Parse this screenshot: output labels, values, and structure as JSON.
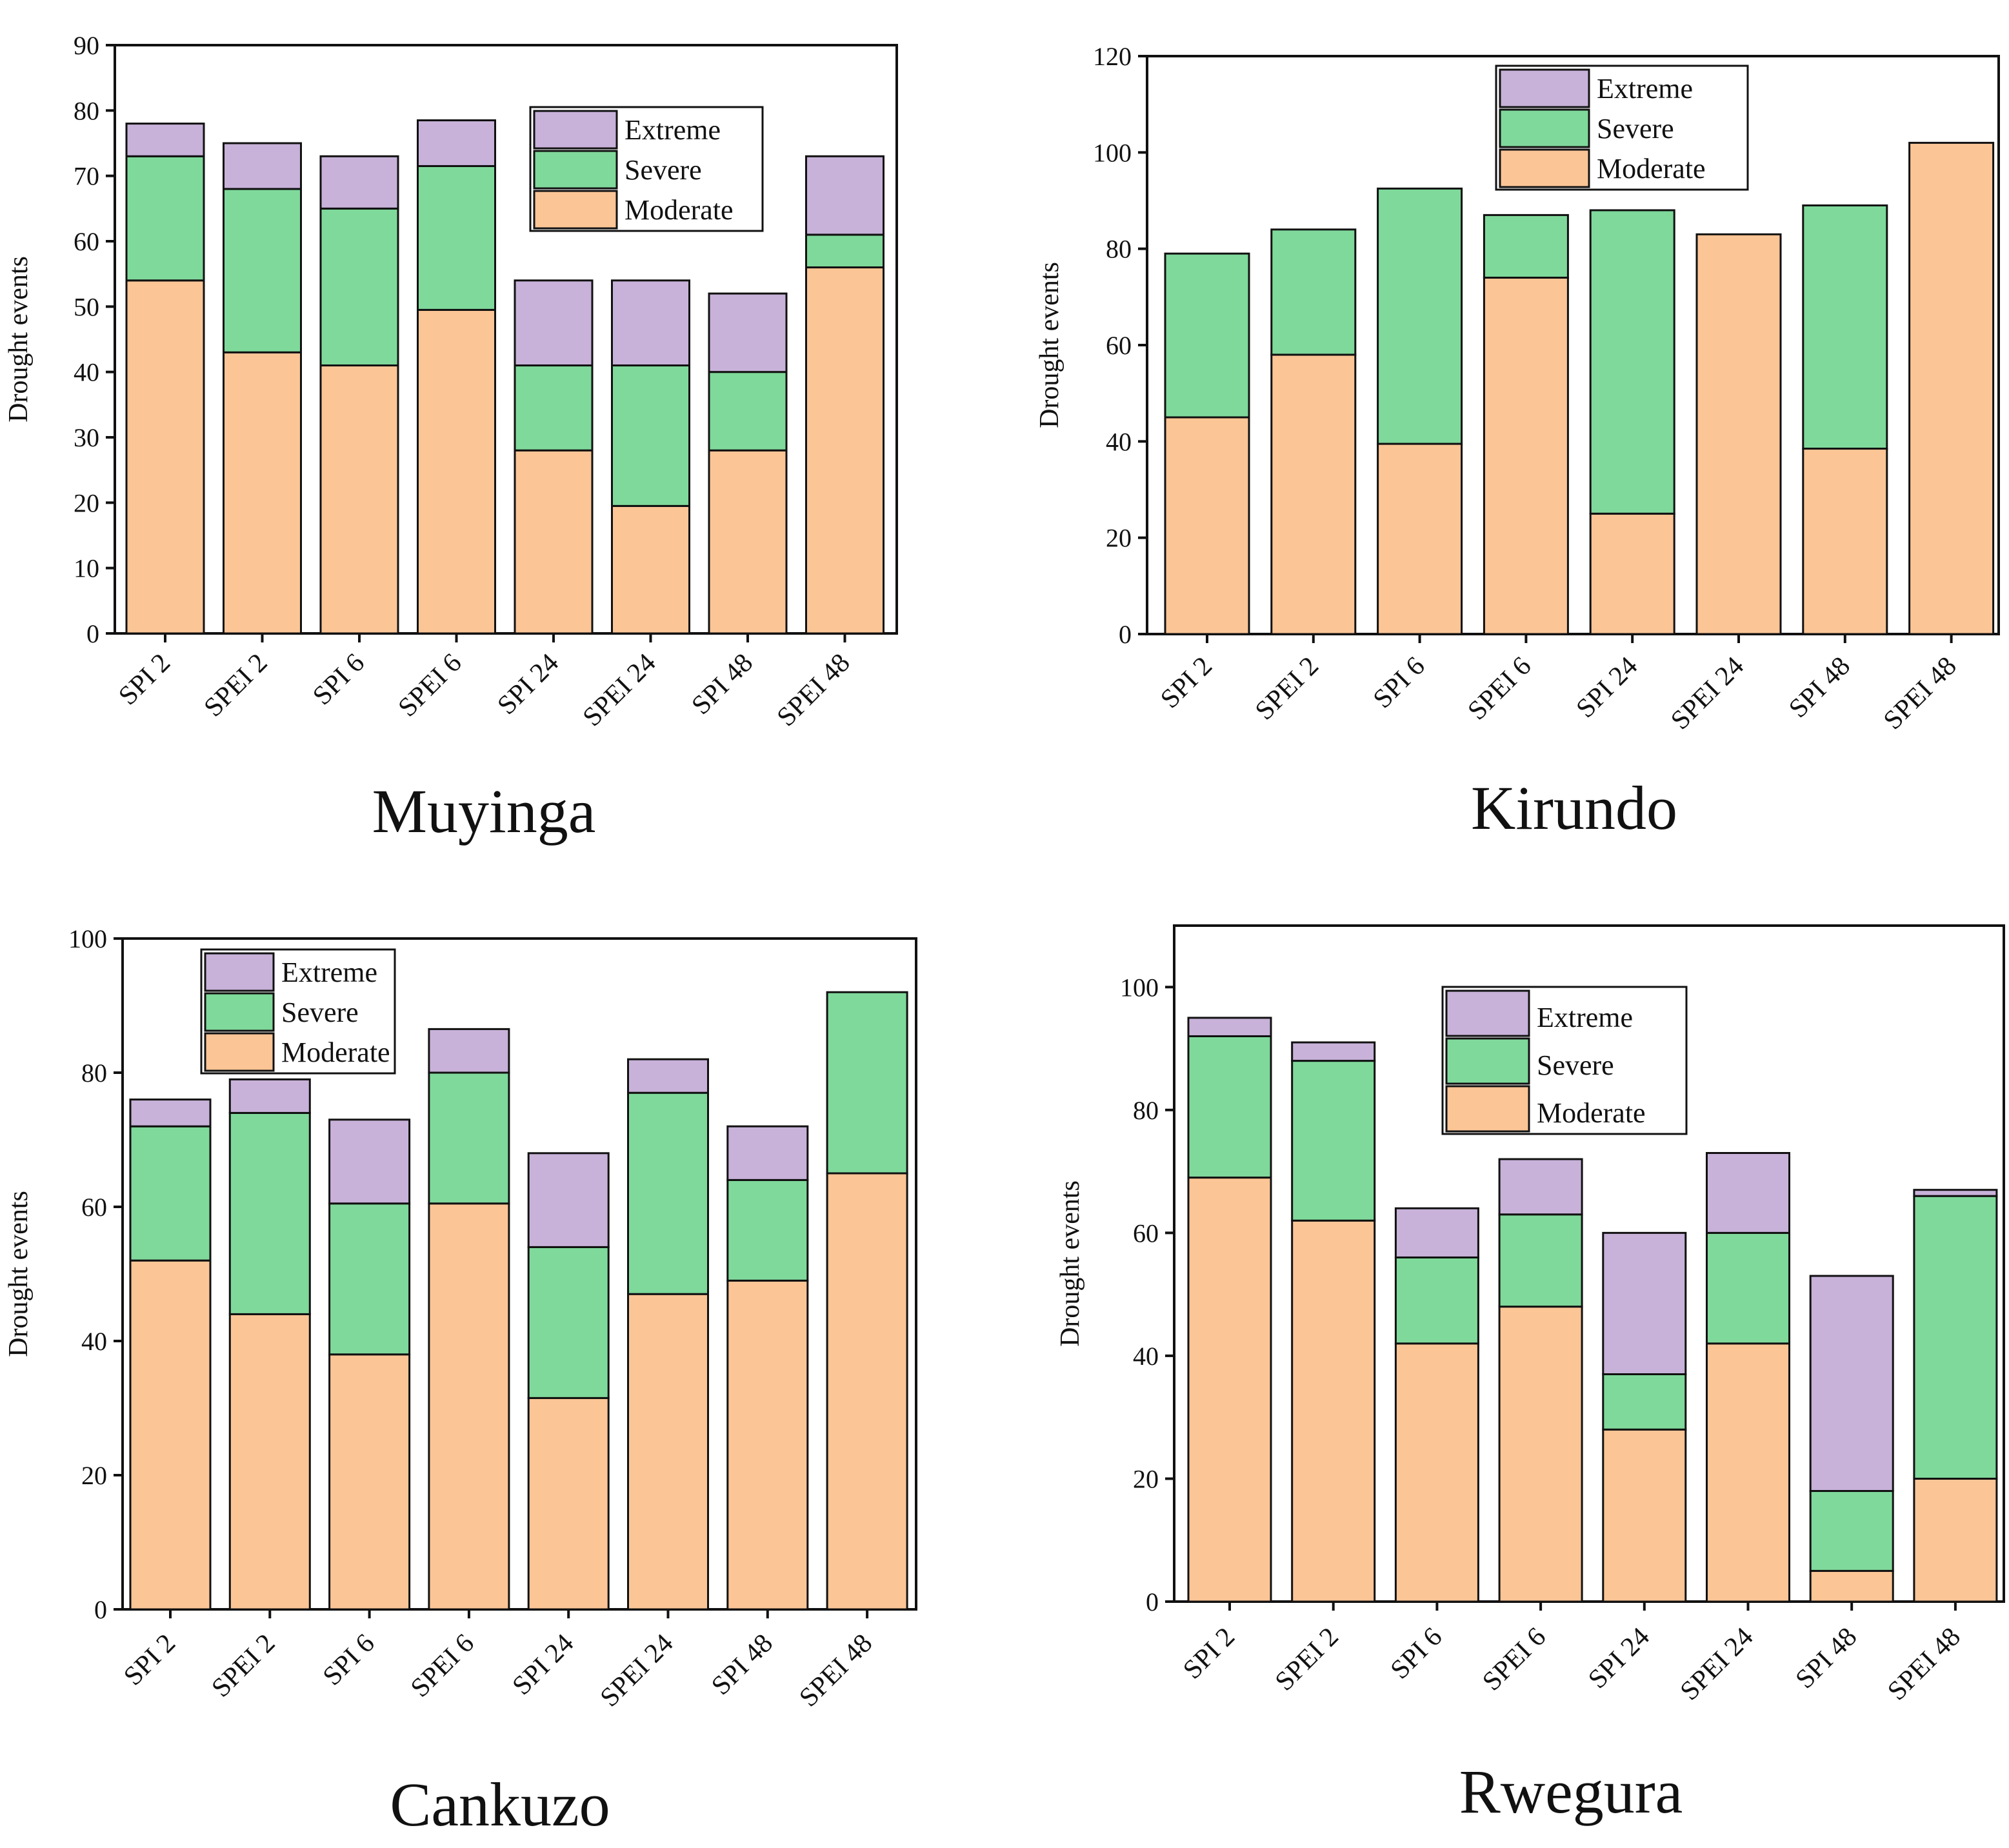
{
  "colors": {
    "moderate": "#fbc596",
    "severe": "#7fd99b",
    "extreme": "#c8b2d9",
    "outline": "#111111"
  },
  "chart_data": [
    {
      "type": "bar",
      "stacked": true,
      "title": "Muyinga",
      "ylabel": "Drought events",
      "ylim": [
        0,
        90
      ],
      "yticks": [
        0,
        10,
        20,
        30,
        40,
        50,
        60,
        70,
        80,
        90
      ],
      "categories": [
        "SPI 2",
        "SPEI 2",
        "SPI 6",
        "SPEI 6",
        "SPI 24",
        "SPEI 24",
        "SPI 48",
        "SPEI 48"
      ],
      "legend": [
        "Extreme",
        "Severe",
        "Moderate"
      ],
      "legend_position": "top-right",
      "series": [
        {
          "name": "Moderate",
          "values": [
            54,
            43,
            41,
            49.5,
            28,
            19.5,
            28,
            56
          ]
        },
        {
          "name": "Severe",
          "values": [
            19,
            25,
            24,
            22,
            13,
            21.5,
            12,
            5
          ]
        },
        {
          "name": "Extreme",
          "values": [
            5,
            7,
            8,
            7,
            13,
            13,
            12,
            12
          ]
        }
      ]
    },
    {
      "type": "bar",
      "stacked": true,
      "title": "Kirundo",
      "ylabel": "Drought events",
      "ylim": [
        0,
        120
      ],
      "yticks": [
        0,
        20,
        40,
        60,
        80,
        100,
        120
      ],
      "categories": [
        "SPI 2",
        "SPEI 2",
        "SPI 6",
        "SPEI 6",
        "SPI 24",
        "SPEI 24",
        "SPI 48",
        "SPEI 48"
      ],
      "legend": [
        "Extreme",
        "Severe",
        "Moderate"
      ],
      "legend_position": "top-center",
      "series": [
        {
          "name": "Moderate",
          "values": [
            45,
            58,
            39.5,
            74,
            25,
            83,
            38.5,
            102
          ]
        },
        {
          "name": "Severe",
          "values": [
            34,
            26,
            53,
            13,
            63,
            0,
            50.5,
            0
          ]
        },
        {
          "name": "Extreme",
          "values": [
            0,
            0,
            0,
            0,
            0,
            0,
            0,
            0
          ]
        }
      ]
    },
    {
      "type": "bar",
      "stacked": true,
      "title": "Cankuzo",
      "ylabel": "Drought events",
      "ylim": [
        0,
        100
      ],
      "yticks": [
        0,
        20,
        40,
        60,
        80,
        100
      ],
      "categories": [
        "SPI 2",
        "SPEI 2",
        "SPI 6",
        "SPEI 6",
        "SPI 24",
        "SPEI 24",
        "SPI 48",
        "SPEI 48"
      ],
      "legend": [
        "Extreme",
        "Severe",
        "Moderate"
      ],
      "legend_position": "top-left",
      "series": [
        {
          "name": "Moderate",
          "values": [
            52,
            44,
            38,
            60.5,
            31.5,
            47,
            49,
            65
          ]
        },
        {
          "name": "Severe",
          "values": [
            20,
            30,
            22.5,
            19.5,
            22.5,
            30,
            15,
            27
          ]
        },
        {
          "name": "Extreme",
          "values": [
            4,
            5,
            12.5,
            6.5,
            14,
            5,
            8,
            0
          ]
        }
      ]
    },
    {
      "type": "bar",
      "stacked": true,
      "title": "Rwegura",
      "ylabel": "Drought events",
      "ylim": [
        0,
        110
      ],
      "yticks": [
        0,
        20,
        40,
        60,
        80,
        100
      ],
      "categories": [
        "SPI 2",
        "SPEI 2",
        "SPI 6",
        "SPEI 6",
        "SPI 24",
        "SPEI 24",
        "SPI 48",
        "SPEI 48"
      ],
      "legend": [
        "Extreme",
        "Severe",
        "Moderate"
      ],
      "legend_position": "top-center",
      "series": [
        {
          "name": "Moderate",
          "values": [
            69,
            62,
            42,
            48,
            28,
            42,
            5,
            20
          ]
        },
        {
          "name": "Severe",
          "values": [
            23,
            26,
            14,
            15,
            9,
            18,
            13,
            46
          ]
        },
        {
          "name": "Extreme",
          "values": [
            3,
            3,
            8,
            9,
            23,
            13,
            35,
            1
          ]
        }
      ]
    }
  ]
}
